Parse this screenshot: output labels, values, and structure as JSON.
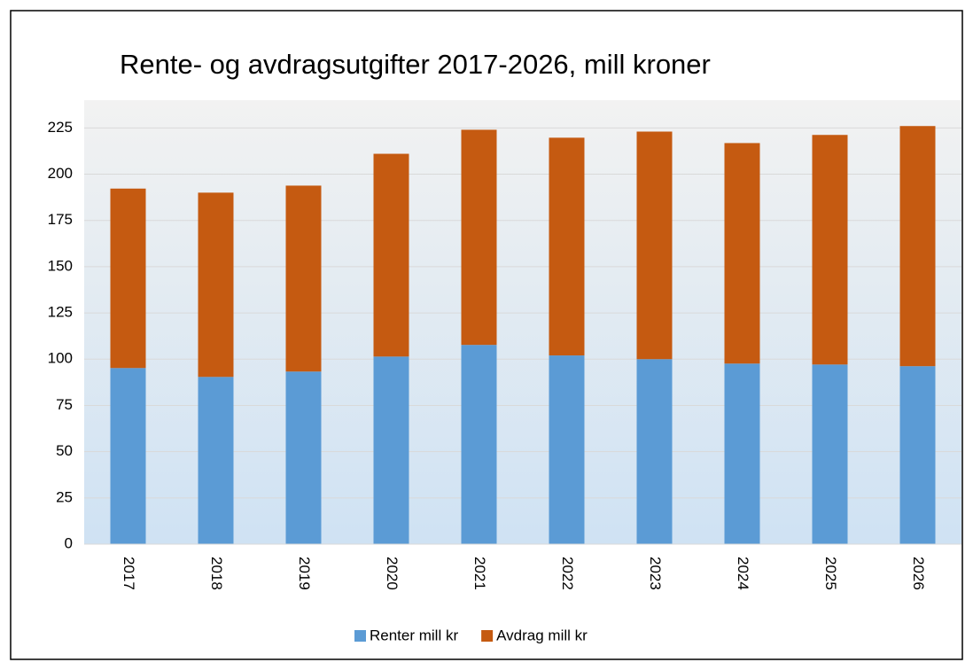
{
  "chart_data": {
    "type": "bar",
    "stacked": true,
    "title": "Rente- og avdragsutgifter 2017-2026, mill kroner",
    "categories": [
      "2017",
      "2018",
      "2019",
      "2020",
      "2021",
      "2022",
      "2023",
      "2024",
      "2025",
      "2026"
    ],
    "series": [
      {
        "name": "Renter mill kr",
        "color": "#5b9bd5",
        "values": [
          95.2,
          90.4,
          93.3,
          101.4,
          107.7,
          102,
          100,
          97.6,
          97.1,
          96.2
        ]
      },
      {
        "name": "Avdrag mill kr",
        "color": "#c55a11",
        "values": [
          97,
          99.6,
          100.5,
          109.6,
          116.3,
          117.7,
          123,
          119.2,
          124.1,
          129.8
        ]
      }
    ],
    "ylim": [
      0,
      240
    ],
    "yticks": [
      0,
      25,
      50,
      75,
      100,
      125,
      150,
      175,
      200,
      225
    ],
    "grid": true,
    "legend": "bottom"
  }
}
